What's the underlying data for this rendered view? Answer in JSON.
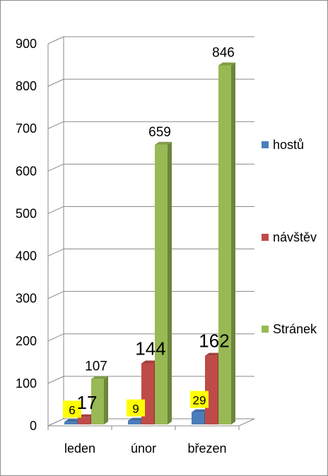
{
  "chart_data": {
    "type": "bar",
    "title": "",
    "xlabel": "",
    "ylabel": "",
    "ylim": [
      0,
      900
    ],
    "yticks": [
      0,
      100,
      200,
      300,
      400,
      500,
      600,
      700,
      800,
      900
    ],
    "grid": true,
    "legend_position": "right",
    "categories": [
      "leden",
      "únor",
      "březen"
    ],
    "series": [
      {
        "name": "hostů",
        "values": [
          6,
          9,
          29
        ],
        "color": "#4a7ebb",
        "label_style": "highlight"
      },
      {
        "name": "návštěv",
        "values": [
          17,
          144,
          162
        ],
        "color": "#be4b48",
        "label_style": "large"
      },
      {
        "name": "Stránek",
        "values": [
          107,
          659,
          846
        ],
        "color": "#98b954",
        "label_style": "normal"
      }
    ]
  }
}
